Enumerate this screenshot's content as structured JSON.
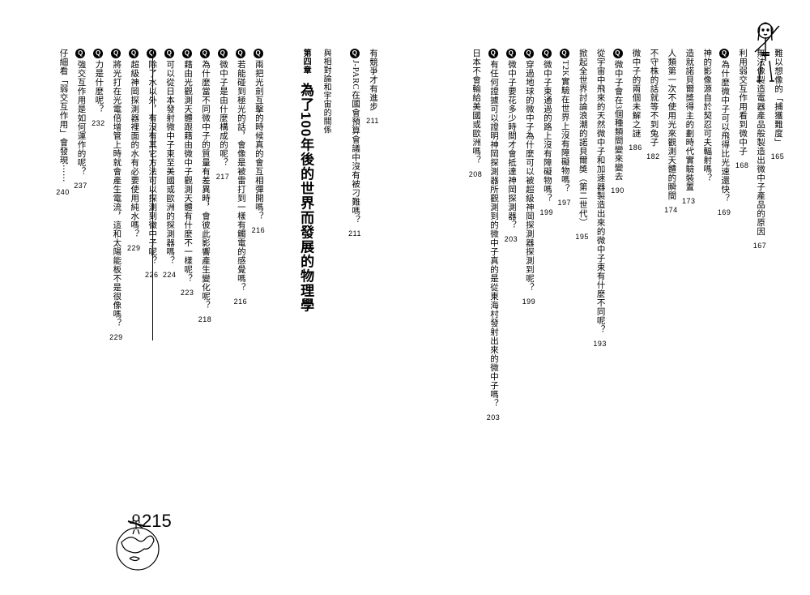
{
  "right_page": {
    "lines": [
      {
        "type": "plain",
        "text": "難以想像的「捕獲難度」",
        "page": "165"
      },
      {
        "type": "plain",
        "text": "無法像製造電器產品般製造出微中子產品的原因",
        "page": "167"
      },
      {
        "type": "plain",
        "text": "利用弱交互作用看到微中子",
        "page": "168"
      },
      {
        "type": "q",
        "text": "為什麼微中子可以飛得比光速還快？",
        "page": "169"
      },
      {
        "type": "plain",
        "text": "神的影像源自於契忍可夫輻射嗎？",
        "page": ""
      },
      {
        "type": "plain",
        "text": "造就諾貝爾獎得主的劃時代實驗裝置",
        "page": "173"
      },
      {
        "type": "plain",
        "text": "人類第一次不使用光來觀測天體的瞬間",
        "page": "174"
      },
      {
        "type": "plain",
        "text": "不守株的話就等不到兔子",
        "page": "182"
      },
      {
        "type": "plain",
        "text": "微中子的兩個未解之謎",
        "page": "186"
      },
      {
        "type": "q",
        "text": "微中子會在3個種類間變來變去",
        "page": "190"
      },
      {
        "type": "plain",
        "text": "從宇宙中飛來的天然微中子和加速器製造出來的微中子束有什麼不同呢？",
        "page": "193"
      },
      {
        "type": "plain",
        "text": "掀起全世界討論浪潮的諾貝爾獎（第二世代）",
        "page": "195"
      },
      {
        "type": "q",
        "text": "T2K實驗在世界上沒有障礙物嗎？",
        "page": "197"
      },
      {
        "type": "q",
        "text": "微中子束通過的路上沒有障礙物嗎？",
        "page": "199"
      },
      {
        "type": "q",
        "text": "穿過地球的微中子為什麼可以被超級神岡探測器探測到呢？",
        "page": "199"
      },
      {
        "type": "q",
        "text": "微中子要花多少時間才會抵達神岡探測器？",
        "page": "203"
      },
      {
        "type": "q",
        "text": "有任何證據可以證明神岡探測器所觀測到的微中子真的是從東海村發射出來的微中子嗎？",
        "page": "203"
      },
      {
        "type": "plain",
        "text": "日本不會輸給美國或歐洲嗎？",
        "page": "208"
      }
    ]
  },
  "left_page": {
    "pre_chapter": [
      {
        "type": "plain",
        "text": "有競爭才有進步",
        "page": "211"
      },
      {
        "type": "q",
        "text": "J-PARC在國會預算會議中沒有被刁難嗎？",
        "page": "211"
      }
    ],
    "chapter": {
      "label": "第四章",
      "title": "為了100年後的世界而發展的物理學",
      "subtitle": "與相對論和宇宙的關係",
      "page": "215"
    },
    "after_chapter": [
      {
        "type": "q",
        "text": "兩把光劍互擊的時候真的會互相彈開嗎？",
        "page": "216"
      },
      {
        "type": "q",
        "text": "若能碰到極光的話，會像是被雷打到一樣有觸電的感覺嗎？",
        "page": "216"
      },
      {
        "type": "q",
        "text": "微中子是由什麼構成的呢？",
        "page": "217"
      },
      {
        "type": "q",
        "text": "為什麼當不同微中子的質量有差異時，會彼此影響產生變化呢？",
        "page": "218"
      },
      {
        "type": "q",
        "text": "藉由光觀測天體跟藉由微中子觀測天體有什麼不一樣呢？",
        "page": "223"
      },
      {
        "type": "q",
        "text": "可以從日本發射微中子束至美國或歐洲的探測器嗎？",
        "page": "224"
      },
      {
        "type": "q",
        "text": "除了水以外，有沒有其它方法可以探測到微中子呢？",
        "page": "226"
      },
      {
        "type": "q",
        "text": "超級神岡探測器裡面的水有必要使用純水嗎？",
        "page": "229"
      },
      {
        "type": "q",
        "text": "將光打在光電倍增管上時就會產生電流，這和太陽能板不是很像嗎？",
        "page": "229"
      },
      {
        "type": "q",
        "text": "力是什麼呢？",
        "page": "232"
      },
      {
        "type": "q",
        "text": "強交互作用是如何運作的呢？",
        "page": "237"
      },
      {
        "type": "plain",
        "text": "仔細看「弱交互作用」會發現⋯⋯",
        "page": "240"
      }
    ]
  },
  "style": {
    "bg": "#ffffff",
    "text": "#000000",
    "body_fontsize": 10.5,
    "chapter_title_fontsize": 17,
    "chapter_page_fontsize": 22
  }
}
